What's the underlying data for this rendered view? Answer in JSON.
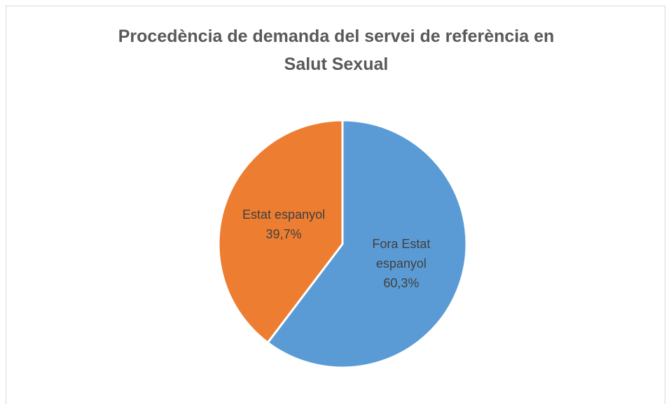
{
  "chart_data": {
    "type": "pie",
    "title": "Procedència de demanda del servei de referència en Salut Sexual",
    "categories": [
      "Fora Estat espanyol",
      "Estat espanyol"
    ],
    "values": [
      60.3,
      39.7
    ],
    "value_labels": [
      "60,3%",
      "39,7%"
    ],
    "colors": [
      "#5b9bd5",
      "#ed7d31"
    ]
  }
}
